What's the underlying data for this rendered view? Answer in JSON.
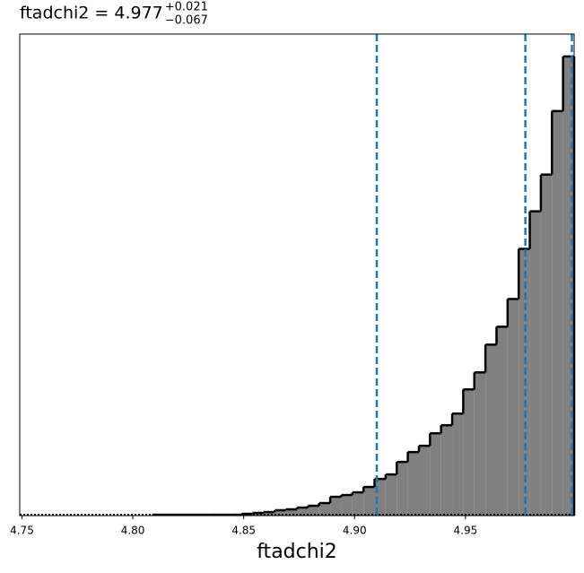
{
  "chart_data": {
    "type": "histogram",
    "title": "ftadchi2 = 4.977",
    "title_sup": "+0.021",
    "title_sub": "−0.067",
    "xlabel": "ftadchi2",
    "bins": [
      4.749,
      4.754,
      4.759,
      4.764,
      4.769,
      4.774,
      4.779,
      4.784,
      4.789,
      4.794,
      4.799,
      4.804,
      4.809,
      4.814,
      4.819,
      4.824,
      4.829,
      4.834,
      4.839,
      4.844,
      4.849,
      4.854,
      4.859,
      4.864,
      4.869,
      4.874,
      4.879,
      4.884,
      4.889,
      4.894,
      4.899,
      4.904,
      4.909,
      4.914,
      4.919,
      4.924,
      4.929,
      4.934,
      4.939,
      4.944,
      4.949,
      4.954,
      4.959,
      4.964,
      4.969,
      4.974,
      4.979,
      4.984,
      4.989,
      4.994,
      4.999
    ],
    "counts": [
      0,
      0,
      0,
      0,
      0,
      0,
      0,
      0,
      0,
      0,
      0,
      0,
      1,
      1,
      1,
      1,
      1,
      1,
      1,
      1,
      2,
      3,
      4,
      6,
      7,
      9,
      11,
      14,
      21,
      23,
      26,
      32,
      41,
      46,
      60,
      71,
      78,
      92,
      101,
      114,
      141,
      160,
      191,
      211,
      242,
      298,
      340,
      381,
      452,
      513
    ],
    "color": "#808080",
    "edge_color": "#000000",
    "xlim": [
      4.749,
      4.999
    ],
    "ylim": [
      0,
      538
    ],
    "xticks": [
      4.75,
      {
        "value": 4.8,
        "label": "4.80"
      },
      4.85,
      {
        "value": 4.9,
        "label": "4.90"
      },
      4.95
    ],
    "vlines": [
      4.91,
      4.977,
      4.998
    ],
    "vline_color": "#1f77b4"
  }
}
